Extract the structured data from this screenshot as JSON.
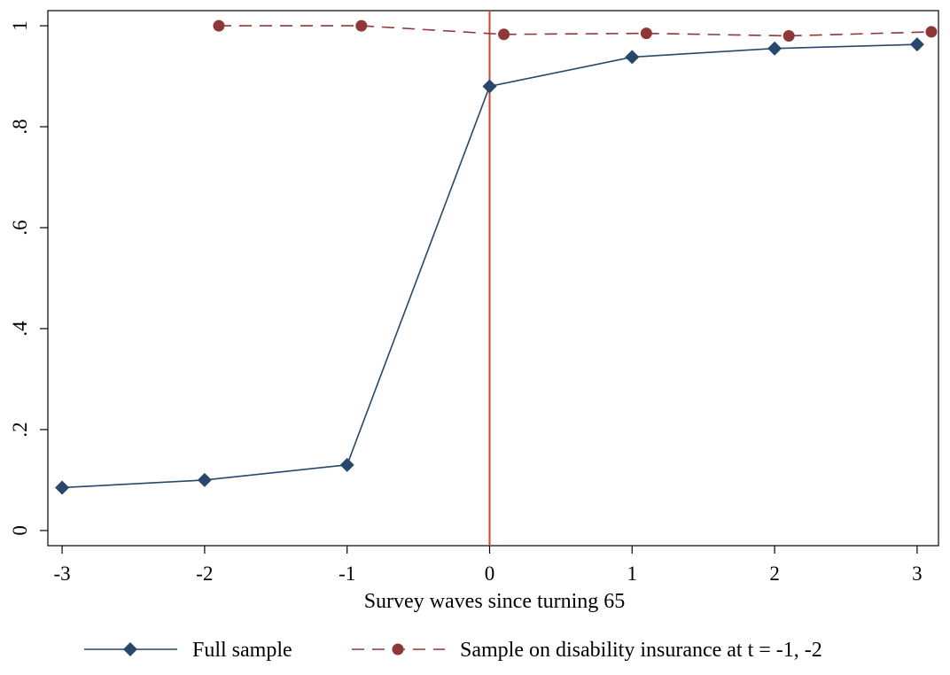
{
  "chart_data": {
    "type": "line",
    "xlabel": "Survey waves since turning 65",
    "ylabel": "",
    "xlim": [
      -3.1,
      3.15
    ],
    "ylim": [
      -0.03,
      1.03
    ],
    "x_ticks": [
      -3,
      -2,
      -1,
      0,
      1,
      2,
      3
    ],
    "x_tick_labels": [
      "-3",
      "-2",
      "-1",
      "0",
      "1",
      "2",
      "3"
    ],
    "y_ticks": [
      0,
      0.2,
      0.4,
      0.6,
      0.8,
      1
    ],
    "y_tick_labels": [
      "0",
      ".2",
      ".4",
      ".6",
      ".8",
      "1"
    ],
    "grid": false,
    "legend_position": "bottom",
    "reference_line": {
      "axis": "x",
      "value": 0,
      "color": "#d9402e"
    },
    "series": [
      {
        "name": "Full sample",
        "color": "#27476b",
        "line_style": "solid",
        "marker": "diamond",
        "x": [
          -3,
          -2,
          -1,
          0,
          1,
          2,
          3
        ],
        "y": [
          0.085,
          0.1,
          0.13,
          0.88,
          0.938,
          0.955,
          0.963
        ]
      },
      {
        "name": "Sample on disability insurance at t = -1, -2",
        "color": "#8e3737",
        "line_style": "dashed",
        "marker": "circle",
        "x": [
          -1.9,
          -0.9,
          0.1,
          1.1,
          2.1,
          3.1
        ],
        "y": [
          1.0,
          1.0,
          0.983,
          0.985,
          0.98,
          0.988
        ]
      }
    ]
  }
}
